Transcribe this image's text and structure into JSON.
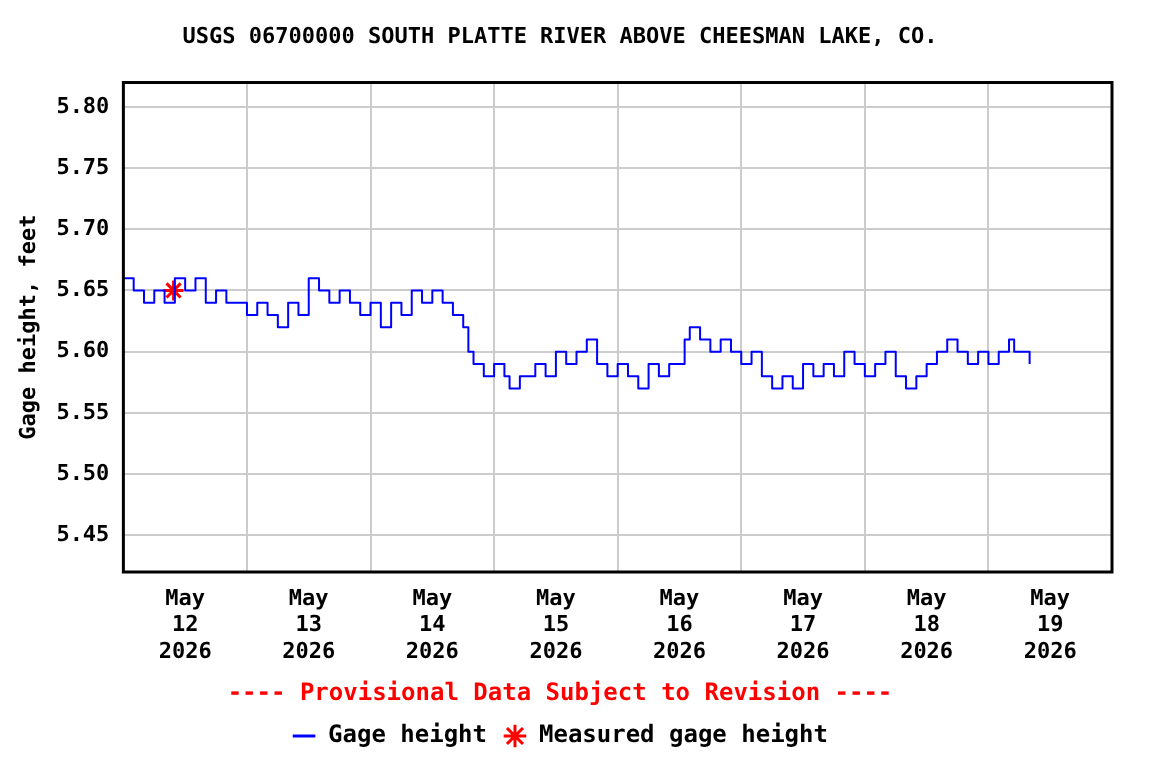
{
  "chart_data": {
    "type": "step",
    "title": "USGS 06700000 SOUTH PLATTE RIVER ABOVE CHEESMAN LAKE, CO.",
    "ylabel": "Gage height, feet",
    "annotations": [
      "---- Provisional Data Subject to Revision ----"
    ],
    "xlim": [
      "2026-05-12T00:00",
      "2026-05-20T00:00"
    ],
    "xticks": [
      {
        "value": "2026-05-12T00:00",
        "label": null
      },
      {
        "value": "2026-05-12T12:00",
        "label": "May 12 2026"
      },
      {
        "value": "2026-05-13T00:00",
        "label": null
      },
      {
        "value": "2026-05-13T12:00",
        "label": "May 13 2026"
      },
      {
        "value": "2026-05-14T00:00",
        "label": null
      },
      {
        "value": "2026-05-14T12:00",
        "label": "May 14 2026"
      },
      {
        "value": "2026-05-15T00:00",
        "label": null
      },
      {
        "value": "2026-05-15T12:00",
        "label": "May 15 2026"
      },
      {
        "value": "2026-05-16T00:00",
        "label": null
      },
      {
        "value": "2026-05-16T12:00",
        "label": "May 16 2026"
      },
      {
        "value": "2026-05-17T00:00",
        "label": null
      },
      {
        "value": "2026-05-17T12:00",
        "label": "May 17 2026"
      },
      {
        "value": "2026-05-18T00:00",
        "label": null
      },
      {
        "value": "2026-05-18T12:00",
        "label": "May 18 2026"
      },
      {
        "value": "2026-05-19T00:00",
        "label": null
      },
      {
        "value": "2026-05-19T12:00",
        "label": "May 19 2026"
      },
      {
        "value": "2026-05-20T00:00",
        "label": null
      }
    ],
    "ylim": [
      5.42,
      5.82
    ],
    "yticks": [
      {
        "value": 5.45,
        "label": "5.45"
      },
      {
        "value": 5.5,
        "label": "5.50"
      },
      {
        "value": 5.55,
        "label": "5.55"
      },
      {
        "value": 5.6,
        "label": "5.60"
      },
      {
        "value": 5.65,
        "label": "5.65"
      },
      {
        "value": 5.7,
        "label": "5.70"
      },
      {
        "value": 5.75,
        "label": "5.75"
      },
      {
        "value": 5.8,
        "label": "5.80"
      }
    ],
    "grid": true,
    "legend": "bottom",
    "series": [
      {
        "name": "Gage height",
        "color": "#0000ff",
        "marker": "none",
        "line_style": "solid",
        "x": [
          "2026-05-12T00:00",
          "2026-05-12T02:00",
          "2026-05-12T04:00",
          "2026-05-12T06:00",
          "2026-05-12T08:00",
          "2026-05-12T10:00",
          "2026-05-12T12:00",
          "2026-05-12T14:00",
          "2026-05-12T16:00",
          "2026-05-12T18:00",
          "2026-05-12T20:00",
          "2026-05-12T22:00",
          "2026-05-13T00:00",
          "2026-05-13T02:00",
          "2026-05-13T04:00",
          "2026-05-13T06:00",
          "2026-05-13T08:00",
          "2026-05-13T10:00",
          "2026-05-13T12:00",
          "2026-05-13T14:00",
          "2026-05-13T16:00",
          "2026-05-13T18:00",
          "2026-05-13T20:00",
          "2026-05-13T22:00",
          "2026-05-14T00:00",
          "2026-05-14T02:00",
          "2026-05-14T04:00",
          "2026-05-14T06:00",
          "2026-05-14T08:00",
          "2026-05-14T10:00",
          "2026-05-14T12:00",
          "2026-05-14T14:00",
          "2026-05-14T16:00",
          "2026-05-14T18:00",
          "2026-05-14T19:00",
          "2026-05-14T20:00",
          "2026-05-14T22:00",
          "2026-05-15T00:00",
          "2026-05-15T02:00",
          "2026-05-15T03:00",
          "2026-05-15T05:00",
          "2026-05-15T08:00",
          "2026-05-15T10:00",
          "2026-05-15T12:00",
          "2026-05-15T14:00",
          "2026-05-15T16:00",
          "2026-05-15T18:00",
          "2026-05-15T20:00",
          "2026-05-15T22:00",
          "2026-05-16T00:00",
          "2026-05-16T02:00",
          "2026-05-16T04:00",
          "2026-05-16T06:00",
          "2026-05-16T08:00",
          "2026-05-16T10:00",
          "2026-05-16T12:00",
          "2026-05-16T13:00",
          "2026-05-16T14:00",
          "2026-05-16T16:00",
          "2026-05-16T18:00",
          "2026-05-16T20:00",
          "2026-05-16T22:00",
          "2026-05-17T00:00",
          "2026-05-17T02:00",
          "2026-05-17T04:00",
          "2026-05-17T06:00",
          "2026-05-17T08:00",
          "2026-05-17T10:00",
          "2026-05-17T12:00",
          "2026-05-17T14:00",
          "2026-05-17T16:00",
          "2026-05-17T18:00",
          "2026-05-17T20:00",
          "2026-05-17T22:00",
          "2026-05-18T00:00",
          "2026-05-18T02:00",
          "2026-05-18T04:00",
          "2026-05-18T06:00",
          "2026-05-18T08:00",
          "2026-05-18T10:00",
          "2026-05-18T12:00",
          "2026-05-18T14:00",
          "2026-05-18T16:00",
          "2026-05-18T18:00",
          "2026-05-18T20:00",
          "2026-05-18T22:00",
          "2026-05-19T00:00",
          "2026-05-19T02:00",
          "2026-05-19T04:00",
          "2026-05-19T05:00",
          "2026-05-19T08:00"
        ],
        "values": [
          5.66,
          5.65,
          5.64,
          5.65,
          5.64,
          5.66,
          5.65,
          5.66,
          5.64,
          5.65,
          5.64,
          5.64,
          5.63,
          5.64,
          5.63,
          5.62,
          5.64,
          5.63,
          5.66,
          5.65,
          5.64,
          5.65,
          5.64,
          5.63,
          5.64,
          5.62,
          5.64,
          5.63,
          5.65,
          5.64,
          5.65,
          5.64,
          5.63,
          5.62,
          5.6,
          5.59,
          5.58,
          5.59,
          5.58,
          5.57,
          5.58,
          5.59,
          5.58,
          5.6,
          5.59,
          5.6,
          5.61,
          5.59,
          5.58,
          5.59,
          5.58,
          5.57,
          5.59,
          5.58,
          5.59,
          5.59,
          5.61,
          5.62,
          5.61,
          5.6,
          5.61,
          5.6,
          5.59,
          5.6,
          5.58,
          5.57,
          5.58,
          5.57,
          5.59,
          5.58,
          5.59,
          5.58,
          5.6,
          5.59,
          5.58,
          5.59,
          5.6,
          5.58,
          5.57,
          5.58,
          5.59,
          5.6,
          5.61,
          5.6,
          5.59,
          5.6,
          5.59,
          5.6,
          5.61,
          5.6,
          5.59
        ]
      },
      {
        "name": "Measured gage height",
        "type": "scatter",
        "color": "#ff0000",
        "marker": "cross",
        "x": [
          "2026-05-12T09:45"
        ],
        "values": [
          5.65
        ]
      }
    ]
  }
}
